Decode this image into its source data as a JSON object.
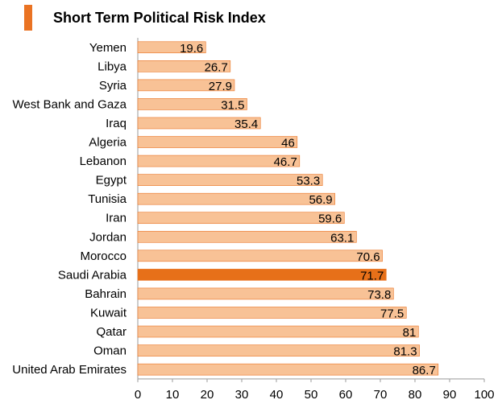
{
  "title": "Short Term Political Risk Index",
  "colors": {
    "bar": "#f8c296",
    "bar_border": "#ea7323",
    "highlight": "#e77019",
    "axis": "#999999",
    "title_marker": "#ea7323"
  },
  "chart_data": {
    "type": "bar",
    "orientation": "horizontal",
    "title": "Short Term Political Risk Index",
    "categories": [
      "Yemen",
      "Libya",
      "Syria",
      "West Bank and Gaza",
      "Iraq",
      "Algeria",
      "Lebanon",
      "Egypt",
      "Tunisia",
      "Iran",
      "Jordan",
      "Morocco",
      "Saudi Arabia",
      "Bahrain",
      "Kuwait",
      "Qatar",
      "Oman",
      "United Arab Emirates"
    ],
    "values": [
      19.6,
      26.7,
      27.9,
      31.5,
      35.4,
      46,
      46.7,
      53.3,
      56.9,
      59.6,
      63.1,
      70.6,
      71.7,
      73.8,
      77.5,
      81,
      81.3,
      86.7
    ],
    "value_labels": [
      "19.6",
      "26.7",
      "27.9",
      "31.5",
      "35.4",
      "46",
      "46.7",
      "53.3",
      "56.9",
      "59.6",
      "63.1",
      "70.6",
      "71.7",
      "73.8",
      "77.5",
      "81",
      "81.3",
      "86.7"
    ],
    "highlight": "Saudi Arabia",
    "xlim": [
      0,
      100
    ],
    "xticks": [
      0,
      10,
      20,
      30,
      40,
      50,
      60,
      70,
      80,
      90,
      100
    ],
    "xlabel": "",
    "ylabel": "",
    "grid": false
  }
}
